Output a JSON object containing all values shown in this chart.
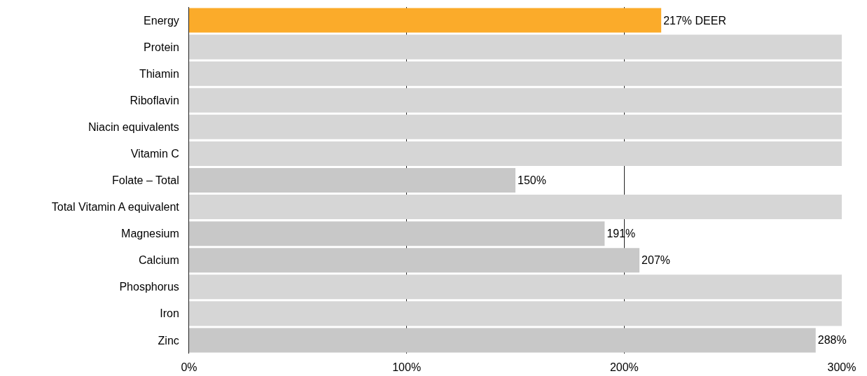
{
  "chart_data": {
    "type": "bar",
    "orientation": "horizontal",
    "categories": [
      "Energy",
      "Protein",
      "Thiamin",
      "Riboflavin",
      "Niacin equivalents",
      "Vitamin C",
      "Folate – Total",
      "Total Vitamin A equivalent",
      "Magnesium",
      "Calcium",
      "Phosphorus",
      "Iron",
      "Zinc"
    ],
    "values": [
      217,
      300,
      300,
      300,
      300,
      300,
      150,
      300,
      191,
      207,
      300,
      300,
      288
    ],
    "colors": [
      "#fbab2a",
      "#d6d6d6",
      "#d6d6d6",
      "#d6d6d6",
      "#d6d6d6",
      "#d6d6d6",
      "#c8c8c8",
      "#d6d6d6",
      "#c8c8c8",
      "#c8c8c8",
      "#d6d6d6",
      "#d6d6d6",
      "#c8c8c8"
    ],
    "value_labels": [
      "217% DEER",
      null,
      null,
      null,
      null,
      null,
      "150%",
      null,
      "191%",
      "207%",
      null,
      null,
      "288%"
    ],
    "xlim": [
      0,
      300
    ],
    "xticks": [
      {
        "value": 0,
        "label": "0%"
      },
      {
        "value": 100,
        "label": "100%"
      },
      {
        "value": 200,
        "label": "200%"
      },
      {
        "value": 300,
        "label": "300%"
      }
    ],
    "grid": "x"
  }
}
